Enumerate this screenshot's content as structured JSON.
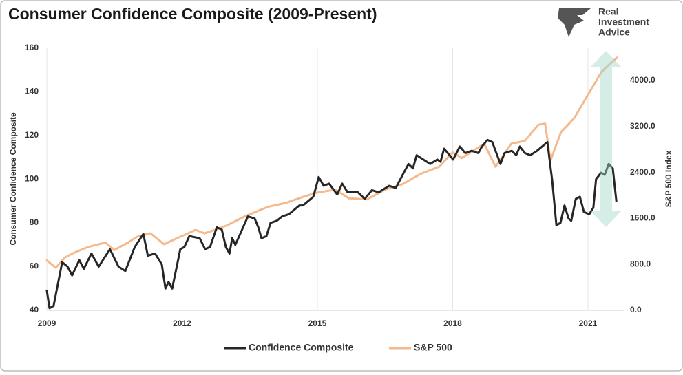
{
  "chart_data": {
    "type": "line",
    "title": "Consumer Confidence Composite (2009-Present)",
    "logo": [
      "Real",
      "Investment",
      "Advice"
    ],
    "y_label": "Consumer Confidence Composite",
    "y2_label": "S&P 500 Index",
    "xlim": [
      2009,
      2021.81
    ],
    "xticks": [
      2009,
      2012,
      2015,
      2018,
      2021
    ],
    "ylim": [
      40,
      160
    ],
    "yticks": [
      40,
      60,
      80,
      100,
      120,
      140,
      160
    ],
    "y2lim": [
      0,
      4563
    ],
    "y2ticks": [
      {
        "value": 0,
        "label": "0.0"
      },
      {
        "value": 800,
        "label": "800.0"
      },
      {
        "value": 1600,
        "label": "1600.0"
      },
      {
        "value": 2400,
        "label": "2400.0"
      },
      {
        "value": 3200,
        "label": "3200.0"
      },
      {
        "value": 4000,
        "label": "4000.0"
      }
    ],
    "grid": "x",
    "legend": "bottom",
    "series": [
      {
        "name": "Confidence Composite",
        "color": "#262626",
        "x": [
          2009.0,
          2009.06,
          2009.15,
          2009.34,
          2009.46,
          2009.56,
          2009.72,
          2009.82,
          2009.99,
          2010.15,
          2010.4,
          2010.59,
          2010.74,
          2010.95,
          2011.14,
          2011.24,
          2011.4,
          2011.55,
          2011.63,
          2011.7,
          2011.78,
          2011.96,
          2012.05,
          2012.16,
          2012.39,
          2012.51,
          2012.62,
          2012.77,
          2012.88,
          2012.97,
          2013.05,
          2013.11,
          2013.18,
          2013.31,
          2013.46,
          2013.61,
          2013.69,
          2013.76,
          2013.87,
          2013.96,
          2014.1,
          2014.22,
          2014.37,
          2014.6,
          2014.68,
          2014.91,
          2015.03,
          2015.14,
          2015.26,
          2015.44,
          2015.55,
          2015.67,
          2015.9,
          2016.05,
          2016.21,
          2016.36,
          2016.59,
          2016.74,
          2016.89,
          2017.02,
          2017.12,
          2017.2,
          2017.35,
          2017.5,
          2017.66,
          2017.73,
          2017.81,
          2017.89,
          2018.01,
          2018.16,
          2018.28,
          2018.42,
          2018.57,
          2018.65,
          2018.77,
          2018.88,
          2018.95,
          2019.06,
          2019.15,
          2019.31,
          2019.41,
          2019.49,
          2019.6,
          2019.72,
          2019.87,
          2020.1,
          2020.21,
          2020.3,
          2020.39,
          2020.48,
          2020.57,
          2020.63,
          2020.73,
          2020.82,
          2020.91,
          2021.03,
          2021.12,
          2021.18,
          2021.29,
          2021.37,
          2021.46,
          2021.55,
          2021.63
        ],
        "values": [
          49,
          41,
          42,
          62,
          60,
          56,
          63,
          59,
          66,
          60,
          68,
          60,
          58,
          69,
          75,
          65,
          66,
          61,
          50,
          53,
          50,
          68,
          69,
          74,
          73,
          68,
          69,
          78,
          77,
          69,
          66,
          73,
          70,
          76,
          83,
          82,
          78,
          73,
          74,
          80,
          81,
          83,
          84,
          88,
          88,
          92,
          101,
          97,
          98,
          93,
          98,
          94,
          94,
          91,
          95,
          94,
          97,
          96,
          102,
          107,
          105,
          111,
          109,
          107,
          109,
          108,
          114,
          112,
          109,
          115,
          112,
          113,
          112,
          115,
          118,
          117,
          113,
          107,
          112,
          113,
          111,
          115,
          112,
          111,
          113,
          117,
          99,
          79,
          80,
          88,
          82,
          81,
          91,
          92,
          85,
          84,
          87,
          100,
          103,
          102,
          107,
          105,
          90
        ]
      },
      {
        "name": "S&P 500",
        "color": "#f4b98c",
        "axis": "y2",
        "x": [
          2009.0,
          2009.2,
          2009.4,
          2009.6,
          2009.9,
          2010.3,
          2010.5,
          2010.8,
          2011.0,
          2011.3,
          2011.6,
          2011.9,
          2012.3,
          2012.5,
          2012.8,
          2013.0,
          2013.4,
          2013.9,
          2014.3,
          2014.7,
          2015.0,
          2015.4,
          2015.7,
          2016.1,
          2016.5,
          2016.9,
          2017.3,
          2017.7,
          2018.0,
          2018.2,
          2018.7,
          2018.95,
          2019.3,
          2019.6,
          2019.9,
          2020.05,
          2020.17,
          2020.4,
          2020.7,
          2021.0,
          2021.3,
          2021.5,
          2021.65
        ],
        "values": [
          870,
          740,
          920,
          1000,
          1100,
          1180,
          1050,
          1180,
          1280,
          1340,
          1150,
          1260,
          1400,
          1340,
          1420,
          1480,
          1640,
          1800,
          1870,
          1980,
          2050,
          2100,
          1950,
          1930,
          2100,
          2200,
          2380,
          2500,
          2750,
          2650,
          2900,
          2500,
          2900,
          2950,
          3230,
          3250,
          2610,
          3100,
          3350,
          3750,
          4150,
          4300,
          4400
        ]
      }
    ]
  }
}
